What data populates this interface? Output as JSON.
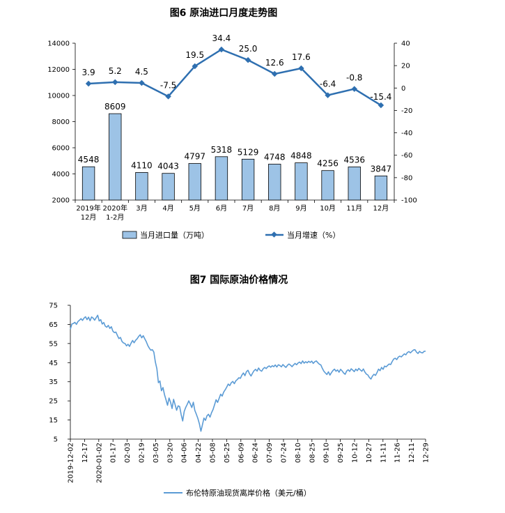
{
  "chart_data": [
    {
      "type": "bar+line",
      "title": "图6  原油进口月度走势图",
      "categories": [
        [
          "2019年",
          "12月"
        ],
        [
          "2020年",
          "1-2月"
        ],
        [
          "3月"
        ],
        [
          "4月"
        ],
        [
          "5月"
        ],
        [
          "6月"
        ],
        [
          "7月"
        ],
        [
          "8月"
        ],
        [
          "9月"
        ],
        [
          "10月"
        ],
        [
          "11月"
        ],
        [
          "12月"
        ]
      ],
      "bar_series": {
        "name": "当月进口量（万吨）",
        "values": [
          4548,
          8609,
          4110,
          4043,
          4797,
          5318,
          5129,
          4748,
          4848,
          4256,
          4536,
          3847
        ],
        "color": "#9dc3e6"
      },
      "line_series": {
        "name": "当月增速（%）",
        "values": [
          3.9,
          5.2,
          4.5,
          -7.5,
          19.5,
          34.4,
          25.0,
          12.6,
          17.6,
          -6.4,
          -0.8,
          -15.4
        ],
        "labels": [
          "3.9",
          "5.2",
          "4.5",
          "-7.5",
          "19.5",
          "34.4",
          "25.0",
          "12.6",
          "17.6",
          "-6.4",
          "-0.8",
          "-15.4"
        ],
        "color": "#2e6fb0"
      },
      "y_left": {
        "min": 2000,
        "max": 14000,
        "ticks": [
          2000,
          4000,
          6000,
          8000,
          10000,
          12000,
          14000
        ]
      },
      "y_right": {
        "min": -100,
        "max": 40,
        "ticks": [
          -100,
          -80,
          -60,
          -40,
          -20,
          0,
          20,
          40
        ]
      },
      "grid": false,
      "legend": "bottom"
    },
    {
      "type": "line",
      "title": "图7  国际原油价格情况",
      "x_ticks": [
        "2019-12-02",
        "12-17",
        "2020-01-02",
        "01-17",
        "02-03",
        "02-19",
        "03-05",
        "03-20",
        "04-06",
        "04-22",
        "05-08",
        "05-25",
        "06-09",
        "06-24",
        "07-09",
        "07-24",
        "08-10",
        "08-25",
        "09-10",
        "09-25",
        "10-12",
        "10-27",
        "11-11",
        "11-26",
        "12-11",
        "12-29"
      ],
      "series": [
        {
          "name": "布伦特原油现货离岸价格（美元/桶）",
          "color": "#5b9bd5",
          "values": [
            62.5,
            65.2,
            65.5,
            66.1,
            65.0,
            66.5,
            67.2,
            68.0,
            67.1,
            68.3,
            69.0,
            67.5,
            68.8,
            66.9,
            68.9,
            68.3,
            67.2,
            68.5,
            69.8,
            66.8,
            67.5,
            65.2,
            66.0,
            64.1,
            63.5,
            64.5,
            62.9,
            63.8,
            61.5,
            60.7,
            61.0,
            59.2,
            57.6,
            58.2,
            56.1,
            55.3,
            55.0,
            53.8,
            54.6,
            53.5,
            55.2,
            56.6,
            55.4,
            56.7,
            57.5,
            58.7,
            59.6,
            58.0,
            59.1,
            57.5,
            56.0,
            54.0,
            52.6,
            51.5,
            51.8,
            50.5,
            45.3,
            41.8,
            34.5,
            35.4,
            30.3,
            32.0,
            28.3,
            25.6,
            22.7,
            26.5,
            24.3,
            21.0,
            25.8,
            23.0,
            20.1,
            22.4,
            22.0,
            17.8,
            14.5,
            19.5,
            21.6,
            23.2,
            25.0,
            23.4,
            21.5,
            24.3,
            20.0,
            18.0,
            15.8,
            13.0,
            9.1,
            12.5,
            16.0,
            14.8,
            17.2,
            18.0,
            16.5,
            18.8,
            20.5,
            23.0,
            25.6,
            24.2,
            26.3,
            28.5,
            27.5,
            29.6,
            30.8,
            32.2,
            33.8,
            33.0,
            34.5,
            35.2,
            34.0,
            35.5,
            36.2,
            37.1,
            36.8,
            38.5,
            39.6,
            38.2,
            40.3,
            41.0,
            39.2,
            38.0,
            39.5,
            40.8,
            41.5,
            40.6,
            42.2,
            41.0,
            40.5,
            41.8,
            42.5,
            41.9,
            42.8,
            43.3,
            42.6,
            43.4,
            42.9,
            43.8,
            42.7,
            43.9,
            43.5,
            42.8,
            44.0,
            43.2,
            42.5,
            43.6,
            44.3,
            43.7,
            42.9,
            43.8,
            44.6,
            43.9,
            44.8,
            45.3,
            44.5,
            45.9,
            44.7,
            45.5,
            44.9,
            45.7,
            45.1,
            45.8,
            44.6,
            45.5,
            45.9,
            45.0,
            44.2,
            43.8,
            42.0,
            40.5,
            39.6,
            38.8,
            40.2,
            38.5,
            39.8,
            40.9,
            41.6,
            40.5,
            41.2,
            40.0,
            41.5,
            40.7,
            39.6,
            38.9,
            40.6,
            41.3,
            40.4,
            41.8,
            41.1,
            40.3,
            41.6,
            40.8,
            42.0,
            41.2,
            40.5,
            41.7,
            40.1,
            39.0,
            38.5,
            37.2,
            36.4,
            38.0,
            38.9,
            38.3,
            39.8,
            41.6,
            40.8,
            42.5,
            41.5,
            43.2,
            42.8,
            43.6,
            44.3,
            44.0,
            45.6,
            46.9,
            47.3,
            46.6,
            47.9,
            48.4,
            48.0,
            48.8,
            49.6,
            49.1,
            50.3,
            50.8,
            50.1,
            50.9,
            51.6,
            51.8,
            50.5,
            49.8,
            50.9,
            50.3,
            50.1,
            50.9,
            51.0
          ]
        }
      ],
      "y": {
        "min": 5,
        "max": 75,
        "ticks": [
          5,
          15,
          25,
          35,
          45,
          55,
          65,
          75
        ]
      },
      "grid": false,
      "legend": "bottom"
    }
  ]
}
